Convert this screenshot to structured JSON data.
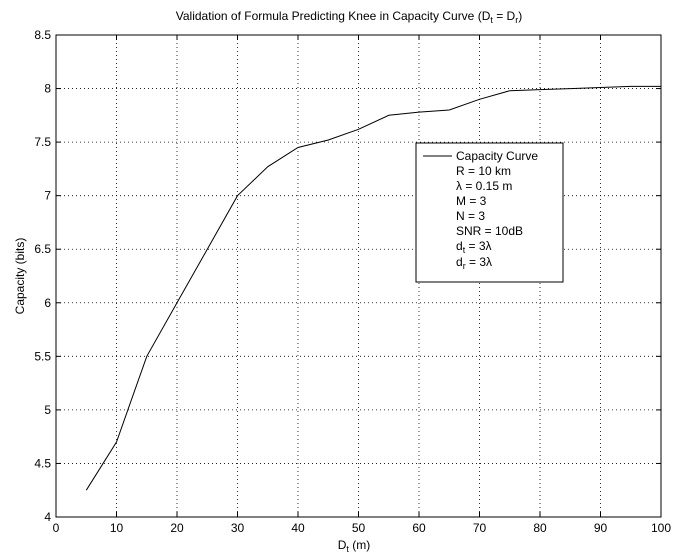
{
  "chart_data": {
    "type": "line",
    "title": {
      "main": "Validation of Formula Predicting Knee in Capacity Curve (D",
      "sub1": "t",
      "mid": " = D",
      "sub2": "r",
      "end": ")"
    },
    "xlabel": {
      "main": "D",
      "sub": "t",
      "end": " (m)"
    },
    "ylabel": "Capacity (bits)",
    "xlim": [
      0,
      100
    ],
    "ylim": [
      4,
      8.5
    ],
    "x_ticks": [
      0,
      10,
      20,
      30,
      40,
      50,
      60,
      70,
      80,
      90,
      100
    ],
    "y_ticks": [
      4,
      4.5,
      5,
      5.5,
      6,
      6.5,
      7,
      7.5,
      8,
      8.5
    ],
    "grid": true,
    "legend_position": "right",
    "series": [
      {
        "name": "Capacity Curve",
        "color": "#000000",
        "x": [
          5,
          10,
          15,
          20,
          25,
          30,
          35,
          40,
          45,
          50,
          55,
          60,
          65,
          70,
          75,
          80,
          85,
          90,
          95,
          100
        ],
        "values": [
          4.25,
          4.7,
          5.5,
          6.0,
          6.5,
          7.0,
          7.27,
          7.45,
          7.52,
          7.62,
          7.75,
          7.78,
          7.8,
          7.9,
          7.98,
          7.99,
          8.0,
          8.01,
          8.02,
          8.02
        ]
      }
    ],
    "legend_params": [
      {
        "main": "R = 10 km"
      },
      {
        "main": "λ = 0.15 m"
      },
      {
        "main": "M = 3"
      },
      {
        "main": "N = 3"
      },
      {
        "main": "SNR = 10dB"
      },
      {
        "main": "d",
        "sub": "t",
        "end": " = 3λ"
      },
      {
        "main": "d",
        "sub": "r",
        "end": " = 3λ"
      }
    ]
  }
}
